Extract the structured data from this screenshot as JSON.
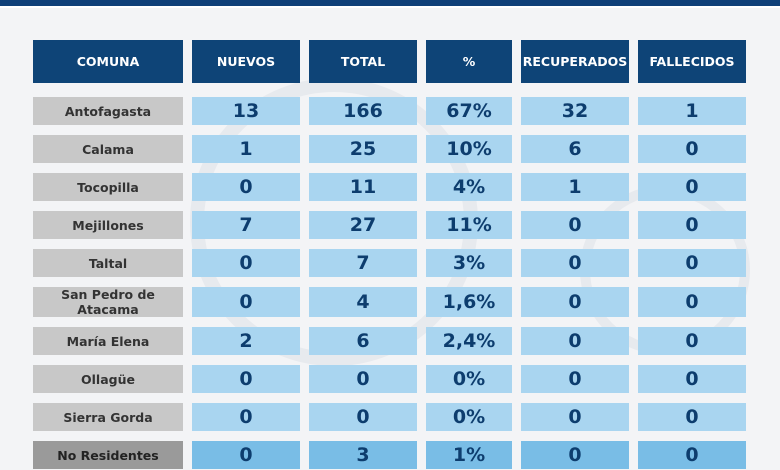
{
  "columns": [
    "COMUNA",
    "NUEVOS",
    "TOTAL",
    "%",
    "RECUPERADOS",
    "FALLECIDOS"
  ],
  "rows": [
    {
      "comuna": "Antofagasta",
      "nuevos": "13",
      "total": "166",
      "pct": "67%",
      "recuperados": "32",
      "fallecidos": "1"
    },
    {
      "comuna": "Calama",
      "nuevos": "1",
      "total": "25",
      "pct": "10%",
      "recuperados": "6",
      "fallecidos": "0"
    },
    {
      "comuna": "Tocopilla",
      "nuevos": "0",
      "total": "11",
      "pct": "4%",
      "recuperados": "1",
      "fallecidos": "0"
    },
    {
      "comuna": "Mejillones",
      "nuevos": "7",
      "total": "27",
      "pct": "11%",
      "recuperados": "0",
      "fallecidos": "0"
    },
    {
      "comuna": "Taltal",
      "nuevos": "0",
      "total": "7",
      "pct": "3%",
      "recuperados": "0",
      "fallecidos": "0"
    },
    {
      "comuna": "San Pedro de Atacama",
      "nuevos": "0",
      "total": "4",
      "pct": "1,6%",
      "recuperados": "0",
      "fallecidos": "0"
    },
    {
      "comuna": "María Elena",
      "nuevos": "2",
      "total": "6",
      "pct": "2,4%",
      "recuperados": "0",
      "fallecidos": "0"
    },
    {
      "comuna": "Ollagüe",
      "nuevos": "0",
      "total": "0",
      "pct": "0%",
      "recuperados": "0",
      "fallecidos": "0"
    },
    {
      "comuna": "Sierra Gorda",
      "nuevos": "0",
      "total": "0",
      "pct": "0%",
      "recuperados": "0",
      "fallecidos": "0"
    },
    {
      "comuna": "No Residentes",
      "nuevos": "0",
      "total": "3",
      "pct": "1%",
      "recuperados": "0",
      "fallecidos": "0"
    }
  ],
  "colors": {
    "header_bg": "#0e4477",
    "name_bg": "#c8c8c8",
    "value_bg": "#a9d5f0",
    "value_text": "#0d3d6e",
    "top_bar": "#0f3f78"
  }
}
